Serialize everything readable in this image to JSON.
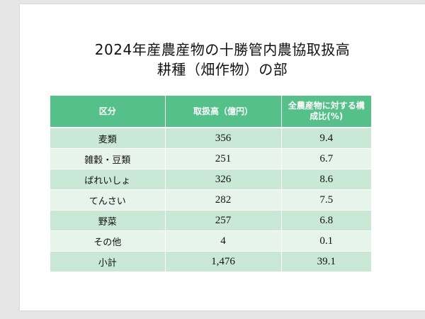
{
  "title": {
    "line1": "2024年産農産物の十勝管内農協取扱高",
    "line2": "耕種（畑作物）の部"
  },
  "table": {
    "headers": [
      "区分",
      "取扱高（億円）",
      "全農産物に対する構成比(%)"
    ],
    "rows": [
      {
        "category": "麦類",
        "amount": "356",
        "ratio": "9.4"
      },
      {
        "category": "雑穀・豆類",
        "amount": "251",
        "ratio": "6.7"
      },
      {
        "category": "ばれいしょ",
        "amount": "326",
        "ratio": "8.6"
      },
      {
        "category": "てんさい",
        "amount": "282",
        "ratio": "7.5"
      },
      {
        "category": "野菜",
        "amount": "257",
        "ratio": "6.8"
      },
      {
        "category": "その他",
        "amount": "4",
        "ratio": "0.1"
      },
      {
        "category": "小計",
        "amount": "1,476",
        "ratio": "39.1"
      }
    ]
  },
  "colors": {
    "header_bg": "#55c08a",
    "row_dark": "#c9e9d6",
    "row_light": "#e6f4ec"
  }
}
